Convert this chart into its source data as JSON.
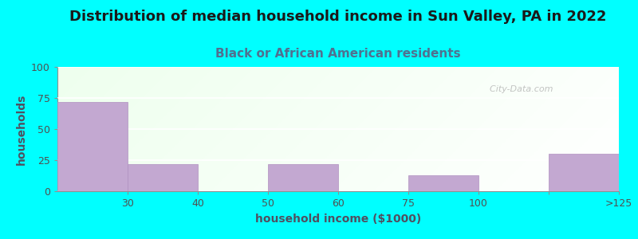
{
  "title": "Distribution of median household income in Sun Valley, PA in 2022",
  "subtitle": "Black or African American residents",
  "xlabel": "household income ($1000)",
  "ylabel": "households",
  "background_color": "#00FFFF",
  "bar_color": "#C3A8D1",
  "bar_edge_color": "#B090C0",
  "ylim": [
    0,
    100
  ],
  "yticks": [
    0,
    25,
    50,
    75,
    100
  ],
  "categories": [
    "<30",
    "30-40",
    "40-50",
    "50-60",
    "60-75",
    "75-100",
    "100-125",
    ">125"
  ],
  "bar_lefts": [
    0,
    1,
    2,
    3,
    4,
    5,
    6,
    7
  ],
  "bar_widths": [
    1,
    1,
    1,
    1,
    1,
    1,
    1,
    1
  ],
  "bar_heights": [
    72,
    22,
    0,
    22,
    0,
    13,
    0,
    30
  ],
  "xtick_positions": [
    1,
    2,
    3,
    4,
    5,
    6,
    7,
    8
  ],
  "xtick_labels": [
    "30",
    "40",
    "50",
    "60",
    "75",
    "100",
    "",
    ">125"
  ],
  "watermark": "  City-Data.com",
  "title_fontsize": 13,
  "subtitle_fontsize": 11,
  "label_fontsize": 10,
  "tick_fontsize": 9
}
